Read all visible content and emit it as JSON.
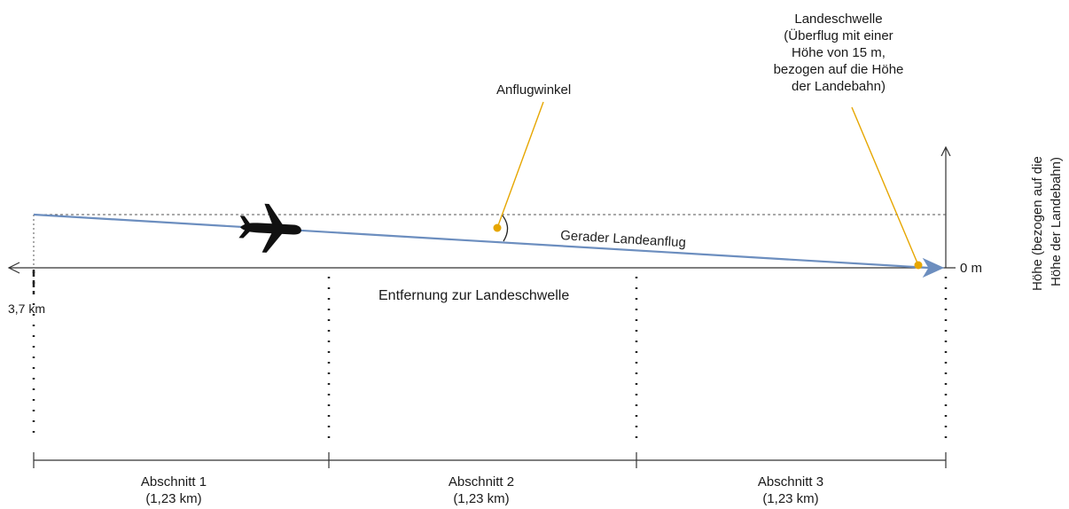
{
  "labels": {
    "threshold": "Landeschwelle\n(Überflug mit einer\nHöhe von 15 m,\nbezogen auf die Höhe\nder Landebahn)",
    "approach_angle": "Anflugwinkel",
    "glide_path": "Gerader Landeanflug",
    "distance_axis": "Entfernung zur Landeschwelle",
    "height_axis": "Höhe (bezogen auf die\nHöhe der Landebahn)",
    "zero_height": "0 m",
    "start_distance": "3,7 km"
  },
  "sections": [
    {
      "name": "Abschnitt 1",
      "length": "(1,23 km)"
    },
    {
      "name": "Abschnitt 2",
      "length": "(1,23 km)"
    },
    {
      "name": "Abschnitt 3",
      "length": "(1,23 km)"
    }
  ],
  "colors": {
    "glide_path": "#6c8ebf",
    "annotation": "#e6a600",
    "axis": "#333333",
    "guide": "#555555"
  },
  "icons": {
    "aircraft": "airplane-icon"
  }
}
